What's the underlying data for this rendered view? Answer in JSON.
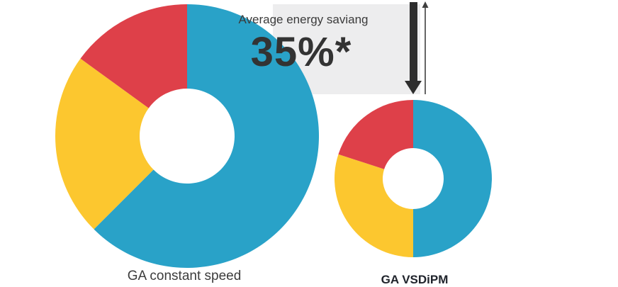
{
  "callout": {
    "title": "Average energy saviang",
    "value": "35%*"
  },
  "colors": {
    "slice_blue": "#29A2C8",
    "slice_yellow": "#FCC72F",
    "slice_red": "#DE4049",
    "callout_bg": "#EDEDEE",
    "arrow_thick": "#2D2D2D",
    "arrow_thin": "#3F3F3F"
  },
  "chart_data": [
    {
      "type": "pie",
      "subtype": "donut",
      "title": "GA constant speed",
      "legend": "none",
      "start_angle_deg": 0,
      "direction": "clockwise",
      "size_hint": "large donut (baseline energy use, outer radius ~186px)",
      "slices": [
        {
          "name": "segment-blue",
          "percent": 62.5,
          "color": "#29A2C8"
        },
        {
          "name": "segment-yellow",
          "percent": 22.5,
          "color": "#FCC72F"
        },
        {
          "name": "segment-red",
          "percent": 15,
          "color": "#DE4049"
        }
      ]
    },
    {
      "type": "pie",
      "subtype": "donut",
      "title": "GA VSDiPM",
      "legend": "none",
      "start_angle_deg": 0,
      "direction": "clockwise",
      "size_hint": "small donut (~35% less energy, outer radius ~111px)",
      "slices": [
        {
          "name": "segment-blue",
          "percent": 50,
          "color": "#29A2C8"
        },
        {
          "name": "segment-yellow",
          "percent": 30,
          "color": "#FCC72F"
        },
        {
          "name": "segment-red",
          "percent": 20,
          "color": "#DE4049"
        }
      ],
      "annotation": "Average energy saviang 35%* (arrow from large donut level down to small donut)"
    }
  ]
}
